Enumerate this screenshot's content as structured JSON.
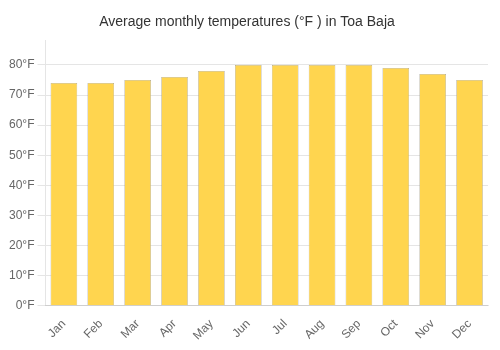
{
  "chart_data": {
    "type": "bar",
    "title": "Average monthly temperatures (°F ) in Toa Baja",
    "categories": [
      "Jan",
      "Feb",
      "Mar",
      "Apr",
      "May",
      "Jun",
      "Jul",
      "Aug",
      "Sep",
      "Oct",
      "Nov",
      "Dec"
    ],
    "values": [
      74,
      74,
      75,
      76,
      78,
      80,
      80,
      80,
      80,
      79,
      77,
      75
    ],
    "color": "#FFD54F",
    "ylim": [
      0,
      88
    ],
    "yticks": [
      {
        "value": 0,
        "label": "0°F"
      },
      {
        "value": 10,
        "label": "10°F"
      },
      {
        "value": 20,
        "label": "20°F"
      },
      {
        "value": 30,
        "label": "30°F"
      },
      {
        "value": 40,
        "label": "40°F"
      },
      {
        "value": 50,
        "label": "50°F"
      },
      {
        "value": 60,
        "label": "60°F"
      },
      {
        "value": 70,
        "label": "70°F"
      },
      {
        "value": 80,
        "label": "80°F"
      }
    ],
    "grid": true
  }
}
